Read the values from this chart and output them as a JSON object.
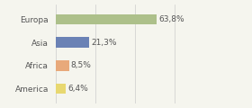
{
  "categories": [
    "Europa",
    "Asia",
    "Africa",
    "America"
  ],
  "values": [
    63.8,
    21.3,
    8.5,
    6.4
  ],
  "labels": [
    "63,8%",
    "21,3%",
    "8,5%",
    "6,4%"
  ],
  "bar_colors": [
    "#adc08a",
    "#6b82b5",
    "#e8a97a",
    "#e8d870"
  ],
  "background_color": "#f5f5ee",
  "xlim": [
    0,
    100
  ],
  "bar_height": 0.45,
  "label_fontsize": 6.5,
  "category_fontsize": 6.5,
  "grid_color": "#cccccc",
  "grid_positions": [
    0,
    25,
    50,
    75,
    100
  ]
}
